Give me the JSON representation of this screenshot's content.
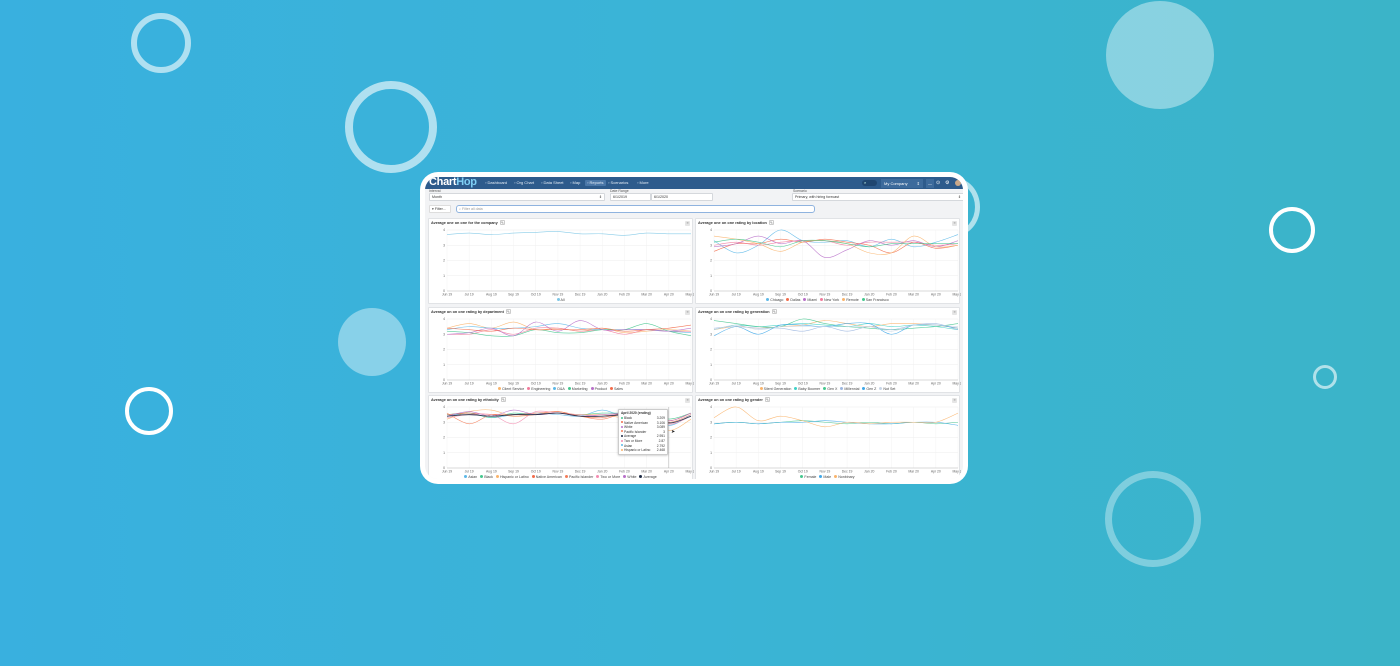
{
  "app": {
    "logo_main": "Chart",
    "logo_accent": "Hop"
  },
  "nav": {
    "items": [
      {
        "label": "Dashboard",
        "icon": "dashboard-icon"
      },
      {
        "label": "Org Chart",
        "icon": "org-chart-icon"
      },
      {
        "label": "Data Sheet",
        "icon": "data-sheet-icon"
      },
      {
        "label": "Map",
        "icon": "map-icon"
      },
      {
        "label": "Reports",
        "icon": "reports-icon",
        "active": true
      },
      {
        "label": "Scenarios",
        "icon": "scenarios-icon"
      },
      {
        "label": "More",
        "icon": "more-icon"
      }
    ],
    "company": "My Company"
  },
  "filters": {
    "interval_label": "Interval",
    "interval_value": "Month",
    "date_range_label": "Date Range",
    "date_start": "6/1/2019",
    "date_end": "6/1/2020",
    "scenario_label": "Scenario",
    "scenario_value": "Primary, with hiring forecast",
    "filter_button": "Filter...",
    "search_placeholder": "Filter all data"
  },
  "colors": {
    "nav": "#2d5b8c",
    "accent": "#7fd0f5"
  },
  "chart_data": [
    {
      "type": "line",
      "title": "Average one on one for the company",
      "ylim": [
        0,
        4
      ],
      "categories": [
        "Jun 19",
        "Jul 19",
        "Aug 19",
        "Sep 19",
        "Oct 19",
        "Nov 19",
        "Dec 19",
        "Jan 20",
        "Feb 20",
        "Mar 20",
        "Apr 20",
        "May 20"
      ],
      "series": [
        {
          "name": "All",
          "color": "#7cc6e6",
          "values": [
            3.7,
            3.8,
            3.7,
            3.8,
            3.85,
            3.9,
            3.75,
            3.75,
            3.65,
            3.8,
            3.75,
            3.75
          ]
        }
      ]
    },
    {
      "type": "line",
      "title": "Average one on one rating by location",
      "ylim": [
        0,
        4
      ],
      "categories": [
        "Jun 19",
        "Jul 19",
        "Aug 19",
        "Sep 19",
        "Oct 19",
        "Nov 19",
        "Dec 19",
        "Jan 20",
        "Feb 20",
        "Mar 20",
        "Apr 20",
        "May 20"
      ],
      "series": [
        {
          "name": "Chicago",
          "color": "#5bb8e8",
          "values": [
            3.3,
            2.5,
            3.0,
            4.0,
            3.3,
            3.2,
            3.3,
            2.9,
            3.4,
            2.9,
            3.2,
            3.7
          ]
        },
        {
          "name": "Dallas",
          "color": "#f26b4a",
          "values": [
            2.6,
            3.1,
            3.1,
            3.4,
            3.2,
            3.4,
            3.2,
            3.0,
            2.5,
            3.2,
            2.8,
            3.0
          ]
        },
        {
          "name": "Miami",
          "color": "#b86fc9",
          "values": [
            2.9,
            3.1,
            3.6,
            3.1,
            3.3,
            2.2,
            2.7,
            3.3,
            3.0,
            3.3,
            2.9,
            3.3
          ]
        },
        {
          "name": "New York",
          "color": "#f27a9b",
          "values": [
            3.0,
            3.2,
            3.0,
            3.2,
            3.3,
            3.3,
            3.0,
            3.2,
            3.2,
            3.2,
            3.0,
            3.1
          ]
        },
        {
          "name": "Remote",
          "color": "#f9b46b",
          "values": [
            3.6,
            3.4,
            3.1,
            2.6,
            3.2,
            3.3,
            3.1,
            2.5,
            2.5,
            3.6,
            2.9,
            3.0
          ]
        },
        {
          "name": "San Francisco",
          "color": "#45c78e",
          "values": [
            3.2,
            3.4,
            3.2,
            2.9,
            3.3,
            3.3,
            3.1,
            2.9,
            3.1,
            3.1,
            3.1,
            3.1
          ]
        }
      ]
    },
    {
      "type": "line",
      "title": "Average on on one rating by department",
      "ylim": [
        0,
        4
      ],
      "categories": [
        "Jun 19",
        "Jul 19",
        "Aug 19",
        "Sep 19",
        "Oct 19",
        "Nov 19",
        "Dec 19",
        "Jan 20",
        "Feb 20",
        "Mar 20",
        "Apr 20",
        "May 20"
      ],
      "series": [
        {
          "name": "Client Service",
          "color": "#f9b46b",
          "values": [
            3.4,
            3.7,
            3.4,
            3.8,
            3.3,
            3.4,
            3.2,
            3.4,
            3.1,
            3.2,
            3.3,
            3.2
          ]
        },
        {
          "name": "Engineering",
          "color": "#f27a9b",
          "values": [
            3.0,
            3.0,
            3.3,
            3.0,
            3.4,
            3.4,
            3.2,
            3.3,
            3.0,
            3.3,
            3.2,
            3.2
          ]
        },
        {
          "name": "D&A",
          "color": "#5bb8e8",
          "values": [
            3.3,
            3.5,
            3.4,
            3.4,
            3.5,
            3.7,
            3.4,
            3.3,
            3.3,
            3.3,
            3.2,
            3.1
          ]
        },
        {
          "name": "Marketing",
          "color": "#45c78e",
          "values": [
            3.2,
            3.1,
            2.9,
            2.9,
            3.3,
            3.1,
            3.1,
            3.3,
            3.3,
            3.7,
            3.2,
            2.9
          ]
        },
        {
          "name": "Product",
          "color": "#b86fc9",
          "values": [
            3.0,
            3.1,
            3.4,
            2.9,
            3.8,
            3.2,
            3.9,
            3.3,
            3.3,
            3.3,
            3.2,
            3.4
          ]
        },
        {
          "name": "Sales",
          "color": "#f26b4a",
          "values": [
            3.4,
            3.3,
            3.2,
            3.4,
            3.3,
            3.3,
            3.3,
            3.4,
            3.2,
            3.3,
            3.4,
            3.6
          ]
        }
      ]
    },
    {
      "type": "line",
      "title": "Average on on one rating by generation",
      "ylim": [
        0,
        4
      ],
      "categories": [
        "Jun 19",
        "Jul 19",
        "Aug 19",
        "Sep 19",
        "Oct 19",
        "Nov 19",
        "Dec 19",
        "Jan 20",
        "Feb 20",
        "Mar 20",
        "Apr 20",
        "May 20"
      ],
      "series": [
        {
          "name": "Silent Generation",
          "color": "#f9b46b",
          "values": [
            3.3,
            3.5,
            3.4,
            3.5,
            3.6,
            3.9,
            3.7,
            3.5,
            3.7,
            3.7,
            3.6,
            3.4
          ]
        },
        {
          "name": "Baby Boomer",
          "color": "#3fd1c7",
          "values": [
            3.3,
            3.6,
            3.5,
            3.6,
            3.7,
            3.6,
            3.5,
            3.7,
            3.5,
            3.6,
            3.5,
            3.3
          ]
        },
        {
          "name": "Gen X",
          "color": "#45c78e",
          "values": [
            3.9,
            3.7,
            3.5,
            3.5,
            4.0,
            3.7,
            3.5,
            3.4,
            3.3,
            3.4,
            3.5,
            3.7
          ]
        },
        {
          "name": "Millennial",
          "color": "#9db7e0",
          "values": [
            3.4,
            3.5,
            3.4,
            3.4,
            3.2,
            3.5,
            3.2,
            3.5,
            3.3,
            3.6,
            3.7,
            3.3
          ]
        },
        {
          "name": "Gen Z",
          "color": "#3fa7e8",
          "values": [
            2.9,
            3.5,
            3.0,
            3.6,
            3.6,
            3.5,
            3.7,
            3.7,
            3.0,
            3.6,
            3.6,
            3.4
          ]
        },
        {
          "name": "Not Set",
          "color": "#c7d5e6",
          "values": [
            3.3,
            3.6,
            3.3,
            3.5,
            3.5,
            3.5,
            3.5,
            3.5,
            3.2,
            3.6,
            3.6,
            3.5
          ]
        }
      ]
    },
    {
      "type": "line",
      "title": "Average on on one rating by ethnicity",
      "ylim": [
        0,
        4
      ],
      "categories": [
        "Jun 19",
        "Jul 19",
        "Aug 19",
        "Sep 19",
        "Oct 19",
        "Nov 19",
        "Dec 19",
        "Jan 20",
        "Feb 20",
        "Mar 20",
        "Apr 20",
        "May 20"
      ],
      "series": [
        {
          "name": "Asian",
          "color": "#5bb8e8",
          "values": [
            3.4,
            3.6,
            3.3,
            3.5,
            3.6,
            3.5,
            3.4,
            3.8,
            3.4,
            3.6,
            2.792,
            3.5
          ]
        },
        {
          "name": "Black",
          "color": "#45c78e",
          "values": [
            3.5,
            3.6,
            3.3,
            3.6,
            3.5,
            3.6,
            3.5,
            3.6,
            3.6,
            3.7,
            3.209,
            3.6
          ]
        },
        {
          "name": "Hispanic or Latino",
          "color": "#f9b46b",
          "values": [
            3.2,
            3.7,
            3.8,
            3.4,
            3.5,
            3.6,
            3.5,
            3.5,
            3.3,
            3.5,
            2.468,
            3.2
          ]
        },
        {
          "name": "Native American",
          "color": "#f26b4a",
          "values": [
            3.5,
            3.6,
            3.5,
            3.5,
            3.6,
            3.7,
            3.4,
            3.3,
            3.6,
            3.7,
            3.106,
            3.6
          ]
        },
        {
          "name": "Pacific Islander",
          "color": "#f47d5a",
          "values": [
            3.6,
            2.9,
            3.5,
            3.4,
            3.5,
            3.7,
            3.4,
            3.2,
            3.6,
            3.6,
            3,
            3.5
          ]
        },
        {
          "name": "Two or More",
          "color": "#f48cb0",
          "values": [
            3.3,
            3.5,
            3.5,
            2.9,
            3.7,
            3.6,
            3.5,
            3.4,
            3.6,
            3.6,
            2.87,
            3.4
          ]
        },
        {
          "name": "White",
          "color": "#b86fc9",
          "values": [
            3.4,
            3.7,
            3.4,
            3.8,
            3.5,
            3.6,
            3.4,
            3.5,
            3.6,
            3.7,
            3.089,
            3.6
          ]
        },
        {
          "name": "Average",
          "color": "#1d2a44",
          "values": [
            3.4,
            3.5,
            3.4,
            3.5,
            3.5,
            3.6,
            3.4,
            3.4,
            3.5,
            3.5,
            2.951,
            3.4
          ]
        }
      ]
    },
    {
      "type": "line",
      "title": "Average on on one rating by gender",
      "ylim": [
        0,
        4
      ],
      "categories": [
        "Jun 19",
        "Jul 19",
        "Aug 19",
        "Sep 19",
        "Oct 19",
        "Nov 19",
        "Dec 19",
        "Jan 20",
        "Feb 20",
        "Mar 20",
        "Apr 20",
        "May 20"
      ],
      "series": [
        {
          "name": "Female",
          "color": "#45c78e",
          "values": [
            2.9,
            3.0,
            2.9,
            3.0,
            3.1,
            3.0,
            2.9,
            3.0,
            2.9,
            3.0,
            2.9,
            3.0
          ]
        },
        {
          "name": "Male",
          "color": "#3fa7e8",
          "values": [
            2.9,
            3.0,
            2.9,
            3.0,
            3.0,
            3.1,
            3.0,
            2.9,
            2.9,
            3.0,
            3.0,
            2.8
          ]
        },
        {
          "name": "Nonbinary",
          "color": "#f9b46b",
          "values": [
            3.3,
            4.0,
            3.1,
            3.4,
            3.1,
            2.7,
            3.0,
            2.9,
            3.0,
            3.0,
            3.0,
            3.6
          ]
        }
      ]
    }
  ],
  "tooltip": {
    "title": "April 2020 (ending)",
    "rows": [
      {
        "name": "Black",
        "value": "3.209",
        "color": "#45c78e"
      },
      {
        "name": "Native American",
        "value": "3.106",
        "color": "#f26b4a"
      },
      {
        "name": "White",
        "value": "3.089",
        "color": "#b86fc9"
      },
      {
        "name": "Pacific Islander",
        "value": "3",
        "color": "#f47d5a"
      },
      {
        "name": "Average",
        "value": "2.951",
        "color": "#1d2a44"
      },
      {
        "name": "Two or More",
        "value": "2.87",
        "color": "#f48cb0"
      },
      {
        "name": "Asian",
        "value": "2.792",
        "color": "#5bb8e8"
      },
      {
        "name": "Hispanic or Latino",
        "value": "2.468",
        "color": "#f9b46b"
      }
    ]
  }
}
